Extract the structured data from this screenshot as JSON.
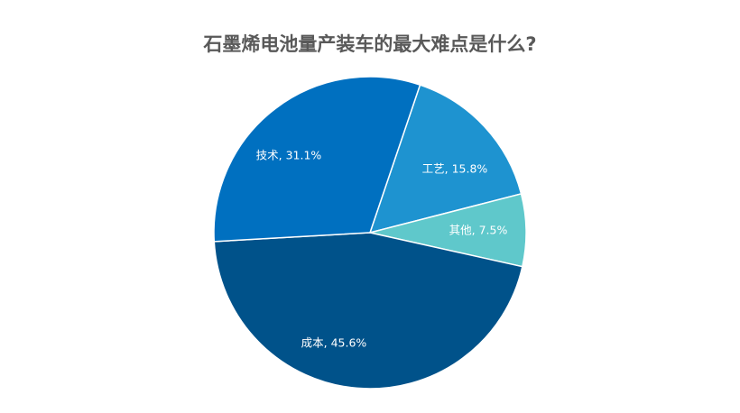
{
  "chart_data": {
    "type": "pie",
    "title": "石墨烯电池量产装车的最大难点是什么?",
    "slices": [
      {
        "label": "工艺",
        "value": 15.8,
        "data_label": "工艺, 15.8%",
        "color": "#1e93d0"
      },
      {
        "label": "其他",
        "value": 7.5,
        "data_label": "其他, 7.5%",
        "color": "#5fc8cb"
      },
      {
        "label": "成本",
        "value": 45.6,
        "data_label": "成本, 45.6%",
        "color": "#00528a"
      },
      {
        "label": "技术",
        "value": 31.1,
        "data_label": "技术, 31.1%",
        "color": "#0070c0"
      }
    ],
    "legend": "none"
  }
}
